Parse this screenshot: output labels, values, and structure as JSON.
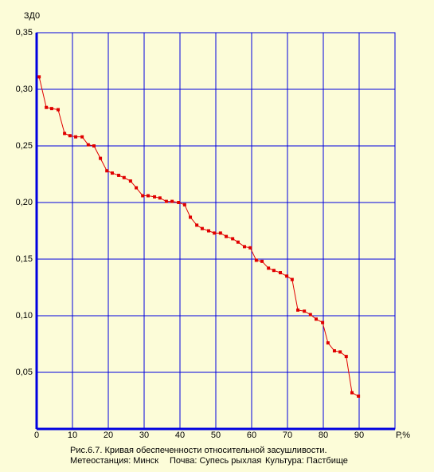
{
  "chart_data": {
    "type": "line",
    "title": "Рис.6.7. Кривая обеспеченности относительной засушливости.",
    "notes": [
      "Метеостанция: Минск",
      "Почва: Супесь рыхлая",
      "Культура: Пастбище"
    ],
    "y_label": "ЗД0",
    "x_label": "Р,%",
    "xlim": [
      0,
      100
    ],
    "ylim": [
      0,
      0.35
    ],
    "xticks": [
      0,
      10,
      20,
      30,
      40,
      50,
      60,
      70,
      80,
      90
    ],
    "yticks": [
      {
        "value": 0.05,
        "label": "0,05"
      },
      {
        "value": 0.1,
        "label": "0,10"
      },
      {
        "value": 0.15,
        "label": "0,15"
      },
      {
        "value": 0.2,
        "label": "0,20"
      },
      {
        "value": 0.25,
        "label": "0,25"
      },
      {
        "value": 0.3,
        "label": "0,30"
      },
      {
        "value": 0.35,
        "label": "0,35"
      }
    ],
    "grid": true,
    "grid_color": "#0000e0",
    "series": [
      {
        "color": "#e00000",
        "x": [
          0.7,
          2.7,
          4.2,
          6.0,
          7.8,
          9.3,
          10.9,
          12.7,
          14.4,
          16.0,
          17.8,
          19.6,
          21.1,
          22.9,
          24.4,
          26.2,
          27.8,
          29.6,
          31.1,
          32.9,
          34.4,
          36.2,
          37.8,
          39.6,
          41.3,
          42.9,
          44.7,
          46.2,
          48.0,
          49.6,
          51.3,
          52.9,
          54.7,
          56.2,
          58.0,
          59.6,
          61.3,
          62.9,
          64.7,
          66.2,
          68.0,
          69.8,
          71.3,
          72.9,
          74.7,
          76.4,
          78.0,
          79.8,
          81.3,
          83.1,
          84.7,
          86.4,
          88.0,
          89.8
        ],
        "values": [
          0.311,
          0.284,
          0.283,
          0.282,
          0.261,
          0.259,
          0.258,
          0.258,
          0.251,
          0.25,
          0.239,
          0.228,
          0.226,
          0.224,
          0.222,
          0.219,
          0.213,
          0.206,
          0.206,
          0.205,
          0.204,
          0.201,
          0.201,
          0.2,
          0.198,
          0.187,
          0.18,
          0.177,
          0.175,
          0.173,
          0.173,
          0.17,
          0.168,
          0.165,
          0.161,
          0.16,
          0.149,
          0.148,
          0.142,
          0.14,
          0.138,
          0.135,
          0.132,
          0.105,
          0.104,
          0.101,
          0.097,
          0.094,
          0.076,
          0.069,
          0.068,
          0.064,
          0.032,
          0.029
        ]
      }
    ]
  }
}
